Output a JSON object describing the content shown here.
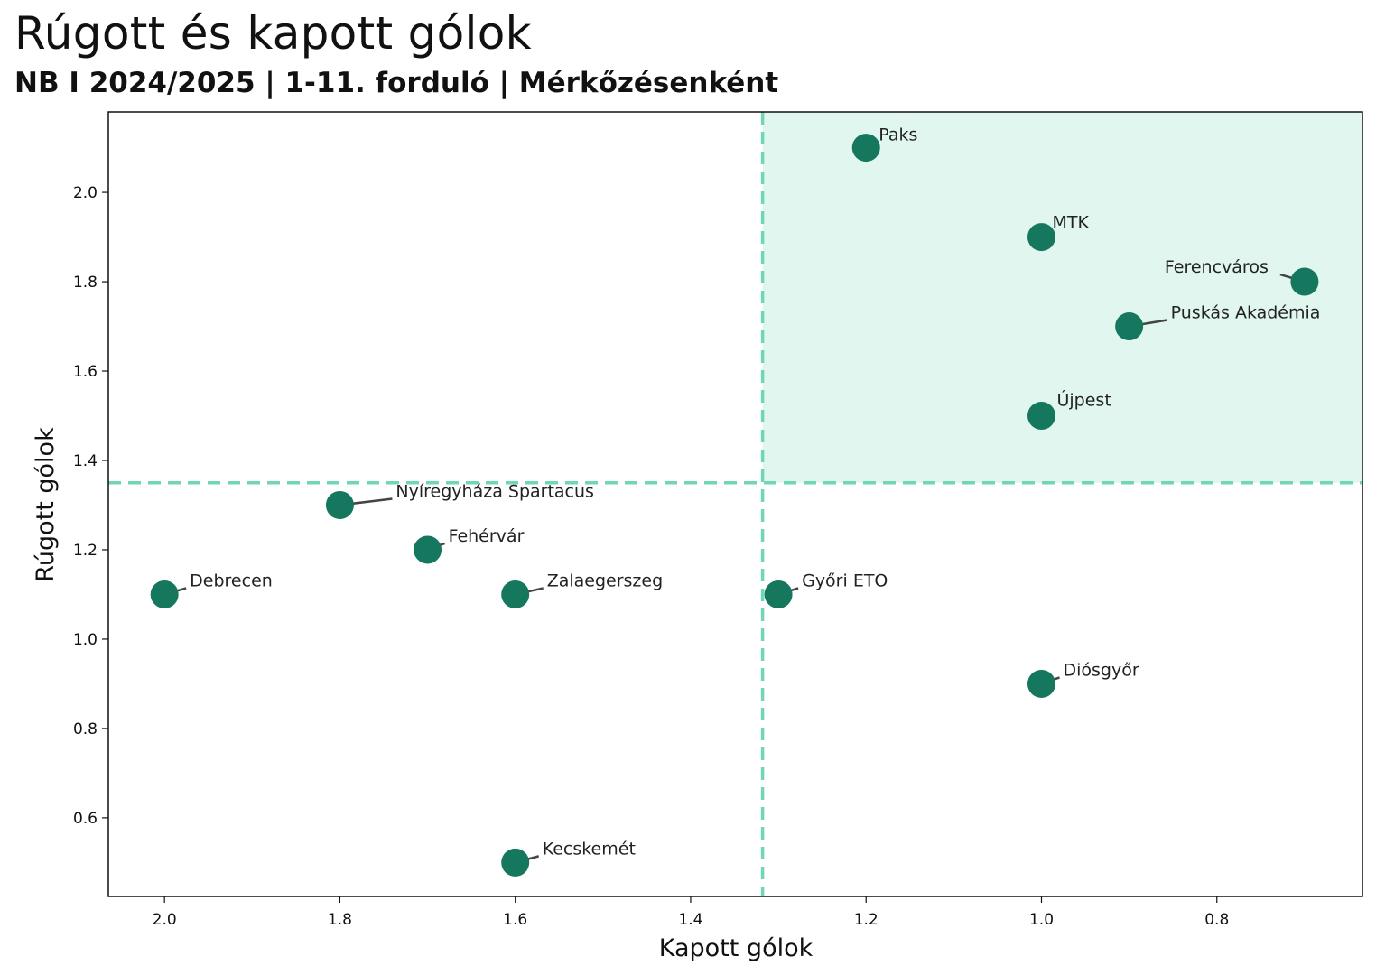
{
  "header": {
    "title": "Rúgott és kapott gólok",
    "subtitle": "NB I 2024/2025 | 1-11. forduló | Mérkőzésenként"
  },
  "chart_data": {
    "type": "scatter",
    "xlabel": "Kapott gólok",
    "ylabel": "Rúgott gólok",
    "xlim": [
      2.064,
      0.634
    ],
    "ylim": [
      0.424,
      2.18
    ],
    "x_inverted": true,
    "x_ticks": [
      2.0,
      1.8,
      1.6,
      1.4,
      1.2,
      1.0,
      0.8
    ],
    "x_tick_labels": [
      "2.0",
      "1.8",
      "1.6",
      "1.4",
      "1.2",
      "1.0",
      "0.8"
    ],
    "y_ticks": [
      0.6,
      0.8,
      1.0,
      1.2,
      1.4,
      1.6,
      1.8,
      2.0
    ],
    "y_tick_labels": [
      "0.6",
      "0.8",
      "1.0",
      "1.2",
      "1.4",
      "1.6",
      "1.8",
      "2.0"
    ],
    "reference_lines": {
      "x": 1.318,
      "y": 1.35
    },
    "highlight_quadrant": "top-right",
    "colors": {
      "point": "#15775e",
      "reference": "#6fd6b8",
      "quadrant_fill": "#e0f6ef",
      "leader": "#444444"
    },
    "points": [
      {
        "name": "Paks",
        "x": 1.2,
        "y": 2.1,
        "label_dx": 14,
        "label_dy": -8
      },
      {
        "name": "MTK",
        "x": 1.0,
        "y": 1.9,
        "label_dx": 12,
        "label_dy": -10
      },
      {
        "name": "Ferencváros",
        "x": 0.7,
        "y": 1.8,
        "label_dx": -155,
        "label_dy": -10,
        "leader": true
      },
      {
        "name": "Puskás Akadémia",
        "x": 0.9,
        "y": 1.7,
        "label_dx": 46,
        "label_dy": -9,
        "leader": true
      },
      {
        "name": "Újpest",
        "x": 1.0,
        "y": 1.5,
        "label_dx": 17,
        "label_dy": -11
      },
      {
        "name": "Nyíregyháza Spartacus",
        "x": 1.8,
        "y": 1.3,
        "label_dx": 62,
        "label_dy": -9,
        "leader": true
      },
      {
        "name": "Fehérvár",
        "x": 1.7,
        "y": 1.2,
        "label_dx": 23,
        "label_dy": -9,
        "leader": true
      },
      {
        "name": "Debrecen",
        "x": 2.0,
        "y": 1.1,
        "label_dx": 28,
        "label_dy": -9,
        "leader": true
      },
      {
        "name": "Zalaegerszeg",
        "x": 1.6,
        "y": 1.1,
        "label_dx": 35,
        "label_dy": -9,
        "leader": true
      },
      {
        "name": "Győri ETO",
        "x": 1.3,
        "y": 1.1,
        "label_dx": 26,
        "label_dy": -9,
        "leader": true
      },
      {
        "name": "Diósgyőr",
        "x": 1.0,
        "y": 0.9,
        "label_dx": 24,
        "label_dy": -9,
        "leader": true
      },
      {
        "name": "Kecskemét",
        "x": 1.6,
        "y": 0.5,
        "label_dx": 30,
        "label_dy": -9,
        "leader": true
      }
    ]
  }
}
